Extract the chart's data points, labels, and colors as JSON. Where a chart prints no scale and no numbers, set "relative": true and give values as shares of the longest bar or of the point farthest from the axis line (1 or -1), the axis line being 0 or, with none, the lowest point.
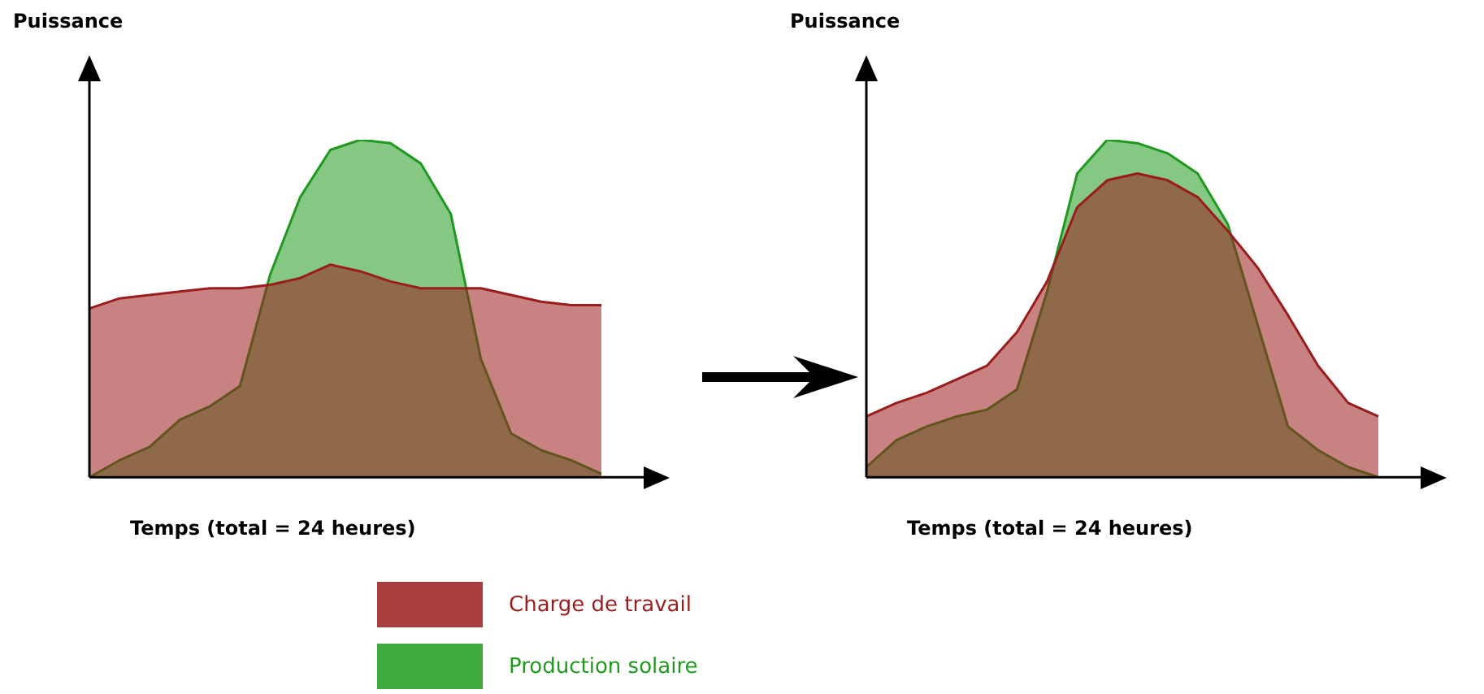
{
  "chart_data": [
    {
      "type": "area",
      "relative": true,
      "ylabel": "Puissance",
      "xlabel": "Temps (total = 24 heures)",
      "marker": "none",
      "legend": "bottom",
      "categories": [
        null,
        null,
        null,
        null,
        null,
        null,
        null,
        null,
        null,
        null,
        null,
        null,
        null,
        null,
        null,
        null,
        null,
        null
      ],
      "series": [
        {
          "name": "Charge de travail",
          "color": "#9b1c1c",
          "values": [
            0.5,
            0.53,
            0.54,
            0.55,
            0.56,
            0.56,
            0.57,
            0.59,
            0.63,
            0.61,
            0.58,
            0.56,
            0.56,
            0.56,
            0.54,
            0.52,
            0.51,
            0.51
          ]
        },
        {
          "name": "Production solaire",
          "color": "#1f9a1f",
          "values": [
            0,
            0.05,
            0.09,
            0.17,
            0.21,
            0.27,
            0.6,
            0.83,
            0.97,
            1.0,
            0.99,
            0.93,
            0.78,
            0.35,
            0.13,
            0.08,
            0.05,
            0.01
          ]
        }
      ]
    },
    {
      "type": "area",
      "relative": true,
      "ylabel": "Puissance",
      "xlabel": "Temps (total = 24 heures)",
      "marker": "none",
      "categories": [
        null,
        null,
        null,
        null,
        null,
        null,
        null,
        null,
        null,
        null,
        null,
        null,
        null,
        null,
        null,
        null,
        null,
        null
      ],
      "series": [
        {
          "color": "#9b1c1c",
          "values": [
            0.18,
            0.22,
            0.25,
            0.29,
            0.33,
            0.43,
            0.58,
            0.8,
            0.88,
            0.9,
            0.88,
            0.83,
            0.73,
            0.62,
            0.48,
            0.33,
            0.22,
            0.18
          ]
        },
        {
          "color": "#1f9a1f",
          "values": [
            0.03,
            0.11,
            0.15,
            0.18,
            0.2,
            0.26,
            0.55,
            0.9,
            1.0,
            0.99,
            0.96,
            0.9,
            0.75,
            0.45,
            0.15,
            0.08,
            0.03,
            0
          ]
        }
      ]
    }
  ]
}
